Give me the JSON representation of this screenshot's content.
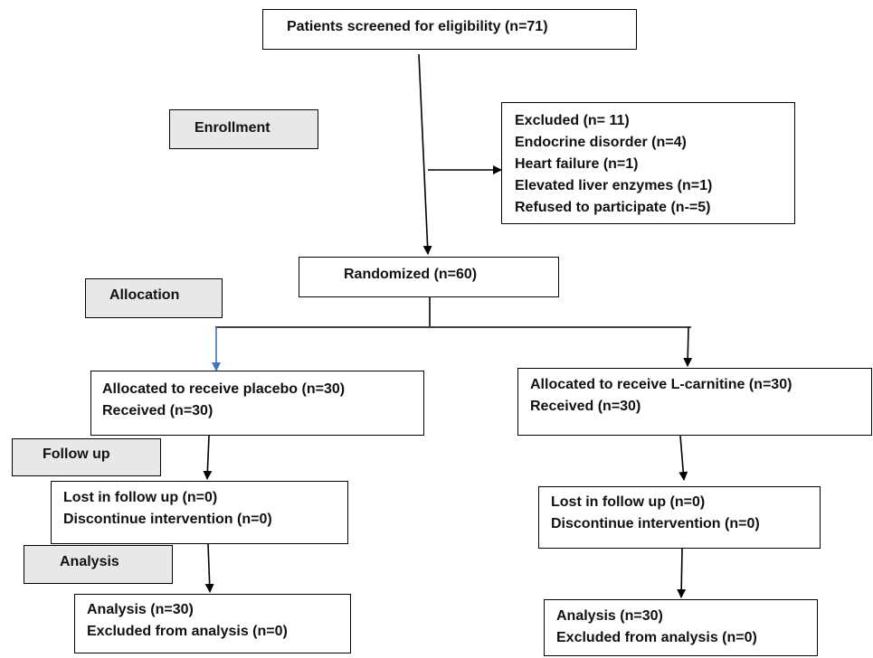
{
  "stages": {
    "enrollment": "Enrollment",
    "allocation": "Allocation",
    "follow_up": "Follow up",
    "analysis": "Analysis"
  },
  "screened": {
    "text": "Patients screened for eligibility (n=71)"
  },
  "excluded": {
    "lines": [
      "Excluded (n= 11)",
      "Endocrine disorder (n=4)",
      "Heart failure (n=1)",
      "Elevated liver enzymes (n=1)",
      "Refused to participate (n-=5)"
    ]
  },
  "randomized": {
    "text": "Randomized (n=60)"
  },
  "placebo_arm": {
    "allocated": [
      "Allocated to receive placebo (n=30)",
      "Received (n=30)"
    ],
    "follow_up": [
      "Lost in follow up (n=0)",
      "Discontinue intervention (n=0)"
    ],
    "analysis": [
      "Analysis (n=30)",
      "Excluded from analysis (n=0)"
    ]
  },
  "carnitine_arm": {
    "allocated": [
      "Allocated to receive L-carnitine (n=30)",
      "Received (n=30)"
    ],
    "follow_up": [
      "Lost in follow up (n=0)",
      "Discontinue intervention (n=0)"
    ],
    "analysis": [
      "Analysis (n=30)",
      "Excluded from analysis (n=0)"
    ]
  },
  "colors": {
    "border": "#000000",
    "stage_fill": "#e8e8e8",
    "placebo_arrow": "#4472c4"
  }
}
